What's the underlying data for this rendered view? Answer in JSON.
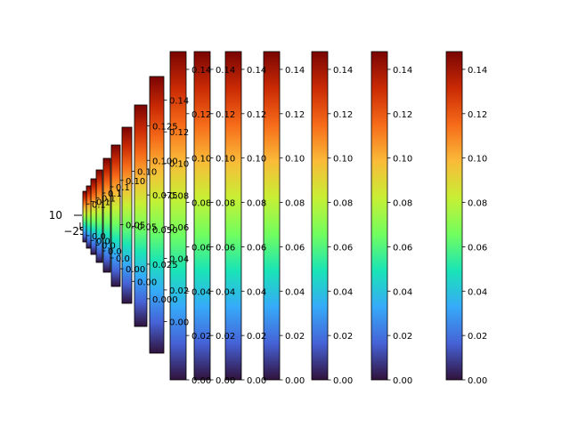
{
  "chart_data": {
    "type": "heatmap",
    "colormap": "turbo",
    "colormap_stops": [
      "#30123b",
      "#4662d7",
      "#36aaf9",
      "#1ae4b6",
      "#72fe5e",
      "#c8ef34",
      "#faba39",
      "#f66b19",
      "#ca2a04",
      "#7a0403"
    ],
    "main_axis": {
      "ytick_labels": [
        "10"
      ],
      "xtick_labels": [
        "−25"
      ]
    },
    "colorbars": [
      {
        "vmin": 0,
        "vmax": 0.148,
        "ticks": [
          "0.00",
          "0.02",
          "0.04",
          "0.06",
          "0.08",
          "0.10",
          "0.12",
          "0.14"
        ]
      },
      {
        "vmin": 0,
        "vmax": 0.148,
        "ticks": [
          "0.00",
          "0.02",
          "0.04",
          "0.06",
          "0.08",
          "0.10",
          "0.12",
          "0.14"
        ]
      },
      {
        "vmin": 0,
        "vmax": 0.148,
        "ticks": [
          "0.00",
          "0.02",
          "0.04",
          "0.06",
          "0.08",
          "0.10",
          "0.12",
          "0.14"
        ]
      },
      {
        "vmin": 0,
        "vmax": 0.148,
        "ticks": [
          "0.00",
          "0.02",
          "0.04",
          "0.06",
          "0.08",
          "0.10",
          "0.12",
          "0.14"
        ]
      },
      {
        "vmin": 0,
        "vmax": 0.148,
        "ticks": [
          "0.00",
          "0.02",
          "0.04",
          "0.06",
          "0.08",
          "0.10",
          "0.12",
          "0.14"
        ]
      },
      {
        "vmin": 0,
        "vmax": 0.148,
        "ticks": [
          "0.00",
          "0.02",
          "0.04",
          "0.06",
          "0.08",
          "0.10",
          "0.12",
          "0.14"
        ]
      },
      {
        "vmin": 0,
        "vmax": 0.148,
        "ticks": [
          "0.00",
          "0.02",
          "0.04",
          "0.06",
          "0.08",
          "0.10",
          "0.12",
          "0.14"
        ]
      },
      {
        "vmin": -0.02,
        "vmax": 0.155,
        "ticks": [
          "0.00",
          "0.02",
          "0.04",
          "0.06",
          "0.08",
          "0.10",
          "0.12",
          "0.14"
        ]
      },
      {
        "vmin": -0.02,
        "vmax": 0.14,
        "ticks": [
          "0.000",
          "0.025",
          "0.050",
          "0.075",
          "0.100",
          "0.125"
        ]
      },
      {
        "vmin": -0.02,
        "vmax": 0.14,
        "ticks": [
          "0.00",
          "0.05",
          "0.10"
        ]
      },
      {
        "vmin": -0.02,
        "vmax": 0.14,
        "ticks": [
          "0.00",
          "0.05",
          "0.10"
        ]
      },
      {
        "vmin": -0.02,
        "vmax": 0.14,
        "ticks": [
          "0.0",
          "0.1"
        ]
      },
      {
        "vmin": -0.02,
        "vmax": 0.14,
        "ticks": [
          "0.0",
          "0.1"
        ]
      },
      {
        "vmin": -0.02,
        "vmax": 0.14,
        "ticks": [
          "0.0",
          "0.1"
        ]
      },
      {
        "vmin": -0.02,
        "vmax": 0.14,
        "ticks": [
          "0.0",
          "0.1"
        ]
      },
      {
        "vmin": -0.02,
        "vmax": 0.14,
        "ticks": [
          "0.0",
          "0.1"
        ]
      }
    ]
  }
}
